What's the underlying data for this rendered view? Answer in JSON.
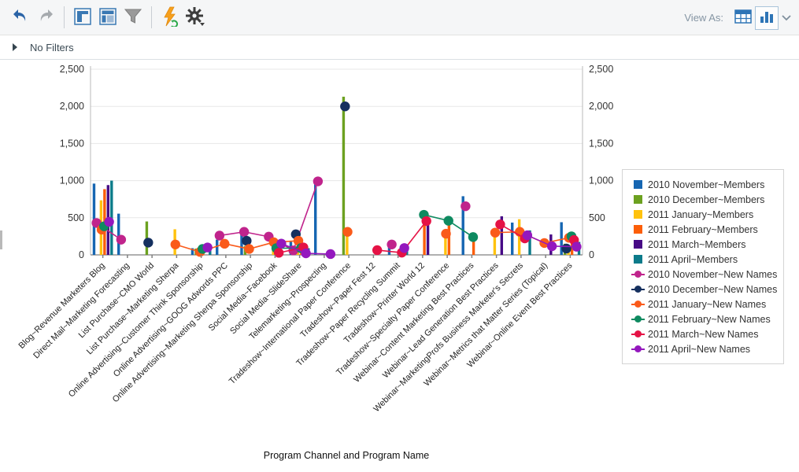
{
  "toolbar": {
    "view_as_label": "View As:",
    "icons": {
      "undo": "curved-arrow-left",
      "redo": "curved-arrow-right",
      "panel_maximize": "window-layout",
      "panel_dashboard": "window-layout-filled",
      "filter": "funnel",
      "run_refresh": "lightning-refresh",
      "settings": "gear",
      "view_table": "table-grid",
      "view_chart": "bar-chart",
      "more": "chevron-down"
    },
    "accent_color": "#2e75b6"
  },
  "filter_bar": {
    "label": "No Filters"
  },
  "chart_data": {
    "type": "bar",
    "title": "",
    "xlabel": "Program Channel and Program Name",
    "ylabel": "",
    "ylim": [
      0,
      2500
    ],
    "ytick_step": 500,
    "yticks": [
      "0",
      "500",
      "1,000",
      "1,500",
      "2,000",
      "2,500"
    ],
    "grid": true,
    "legend_position": "right",
    "categories": [
      "Blog~Revenue Marketers Blog",
      "Direct Mail~Marketing Forecasting",
      "List Purchase~CMO World",
      "List Purchase~Marketing Sherpa",
      "Online Advertising~Customer Think Sponsorship",
      "Online Advertising~GOOG Adwords PPC",
      "Online Advertising~Marketing Sherpa Sponsorship",
      "Social Media~Facebook",
      "Social Media~SlideShare",
      "Telemarketing~Prospecting",
      "Tradeshow~International Paper Conference",
      "Tradeshow~Paper Fest 12",
      "Tradeshow~Paper Recycling Summit",
      "Tradeshow~Printer World 12",
      "Tradeshow~Specialty Paper Conference",
      "Webinar~Content Marketing Best Practices",
      "Webinar~Lead Generation Best Practices",
      "Webinar~MarketingProfs Business Marketer's Secrets",
      "Webinar~Metrics that Matter Series (Topical)",
      "Webinar~Online Event Best Practices"
    ],
    "bar_series": [
      {
        "name": "2010 November~Members",
        "color": "#1666b2",
        "values": [
          960,
          555,
          null,
          null,
          90,
          205,
          310,
          null,
          175,
          990,
          null,
          null,
          115,
          null,
          null,
          790,
          null,
          435,
          null,
          440
        ]
      },
      {
        "name": "2010 December~Members",
        "color": "#6ca120",
        "values": [
          null,
          null,
          450,
          null,
          85,
          null,
          120,
          null,
          null,
          null,
          2130,
          null,
          null,
          null,
          null,
          null,
          null,
          null,
          null,
          150
        ]
      },
      {
        "name": "2011 January~Members",
        "color": "#ffc20e",
        "values": [
          735,
          null,
          null,
          345,
          null,
          null,
          null,
          100,
          110,
          null,
          295,
          null,
          null,
          null,
          270,
          null,
          285,
          480,
          null,
          120
        ]
      },
      {
        "name": "2011 February~Members",
        "color": "#fc5e08",
        "values": [
          885,
          null,
          null,
          null,
          40,
          null,
          null,
          null,
          80,
          null,
          null,
          null,
          null,
          520,
          455,
          230,
          null,
          null,
          null,
          200
        ]
      },
      {
        "name": "2011 March~Members",
        "color": "#470a86",
        "values": [
          940,
          null,
          null,
          null,
          null,
          null,
          null,
          null,
          null,
          null,
          null,
          null,
          null,
          435,
          null,
          null,
          520,
          null,
          275,
          null
        ]
      },
      {
        "name": "2011 April~Members",
        "color": "#0c7b8a",
        "values": [
          1000,
          null,
          null,
          null,
          85,
          null,
          null,
          null,
          90,
          null,
          null,
          null,
          60,
          null,
          null,
          null,
          null,
          330,
          null,
          175
        ]
      }
    ],
    "line_series": [
      {
        "name": "2010 November~New Names",
        "color": "#c0248c",
        "values": [
          430,
          205,
          null,
          null,
          null,
          260,
          310,
          245,
          60,
          990,
          null,
          null,
          140,
          null,
          null,
          655,
          null,
          null,
          null,
          null
        ]
      },
      {
        "name": "2010 December~New Names",
        "color": "#15305f",
        "values": [
          null,
          null,
          165,
          null,
          null,
          null,
          190,
          null,
          277,
          null,
          2000,
          null,
          null,
          null,
          null,
          null,
          null,
          null,
          null,
          85
        ]
      },
      {
        "name": "2011 January~New Names",
        "color": "#fa5a1a",
        "values": [
          340,
          null,
          null,
          140,
          40,
          150,
          80,
          170,
          190,
          null,
          310,
          null,
          null,
          null,
          285,
          null,
          300,
          310,
          160,
          230
        ]
      },
      {
        "name": "2011 February~New Names",
        "color": "#0e8a60",
        "values": [
          385,
          null,
          null,
          null,
          80,
          null,
          null,
          90,
          90,
          null,
          null,
          null,
          null,
          540,
          460,
          240,
          null,
          null,
          null,
          250
        ]
      },
      {
        "name": "2011 March~New Names",
        "color": "#e51245",
        "values": [
          null,
          null,
          null,
          null,
          null,
          null,
          null,
          28,
          100,
          null,
          null,
          64,
          30,
          455,
          null,
          null,
          410,
          222,
          null,
          200
        ]
      },
      {
        "name": "2011 April~New Names",
        "color": "#9418be",
        "values": [
          445,
          null,
          null,
          null,
          100,
          null,
          null,
          152,
          21,
          11,
          null,
          null,
          92,
          null,
          null,
          null,
          null,
          264,
          117,
          110
        ]
      }
    ]
  }
}
